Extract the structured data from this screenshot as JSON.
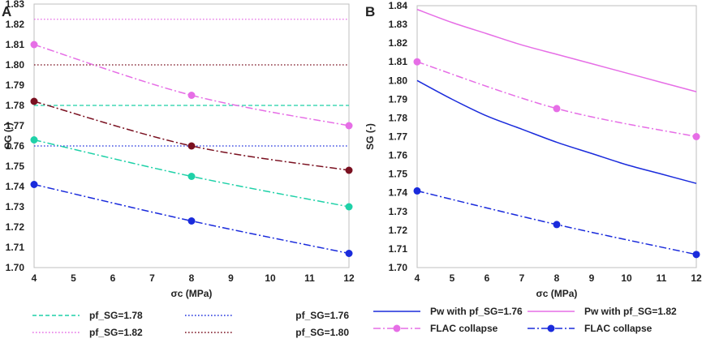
{
  "chart_data": [
    {
      "type": "line",
      "panel_label": "A",
      "xlabel": "σc (MPa)",
      "ylabel": "SG (-)",
      "xlim": [
        4,
        12
      ],
      "ylim": [
        1.7,
        1.83
      ],
      "x_ticks": [
        "4",
        "5",
        "6",
        "7",
        "8",
        "9",
        "10",
        "11",
        "12"
      ],
      "y_ticks": [
        "1.70",
        "1.71",
        "1.72",
        "1.73",
        "1.74",
        "1.75",
        "1.76",
        "1.77",
        "1.78",
        "1.79",
        "1.80",
        "1.81",
        "1.82",
        "1.83"
      ],
      "series": [
        {
          "name": "pf_SG=1.78",
          "kind": "hline",
          "color": "#1fd1a8",
          "dash": "dash",
          "x": [
            4,
            12
          ],
          "values": [
            1.78,
            1.78
          ]
        },
        {
          "name": "pf_SG=1.76",
          "kind": "hline",
          "color": "#2233dd",
          "dash": "dot",
          "x": [
            4,
            12
          ],
          "values": [
            1.76,
            1.76
          ]
        },
        {
          "name": "pf_SG=1.82",
          "kind": "hline",
          "color": "#e66ee6",
          "dash": "dot",
          "x": [
            4,
            12
          ],
          "values": [
            1.8225,
            1.8225
          ]
        },
        {
          "name": "pf_SG=1.80",
          "kind": "hline",
          "color": "#7a1020",
          "dash": "dot",
          "x": [
            4,
            12
          ],
          "values": [
            1.8,
            1.8
          ]
        },
        {
          "name": "FLAC collapse pf_SG=1.82",
          "kind": "marked",
          "color": "#e66ee6",
          "dash": "dashdot",
          "x": [
            4,
            8,
            12
          ],
          "values": [
            1.81,
            1.785,
            1.77
          ]
        },
        {
          "name": "FLAC collapse pf_SG=1.80",
          "kind": "marked",
          "color": "#7a1020",
          "dash": "dashdot",
          "x": [
            4,
            8,
            12
          ],
          "values": [
            1.782,
            1.76,
            1.748
          ]
        },
        {
          "name": "FLAC collapse pf_SG=1.78",
          "kind": "marked",
          "color": "#1fd1a8",
          "dash": "dashdot",
          "x": [
            4,
            8,
            12
          ],
          "values": [
            1.763,
            1.745,
            1.73
          ]
        },
        {
          "name": "FLAC collapse pf_SG=1.76",
          "kind": "marked",
          "color": "#1a2bdc",
          "dash": "dashdot",
          "x": [
            4,
            8,
            12
          ],
          "values": [
            1.741,
            1.723,
            1.707
          ]
        }
      ],
      "legend": [
        {
          "label": "pf_SG=1.78",
          "color": "#1fd1a8",
          "dash": "dash",
          "marker": false
        },
        {
          "label": "pf_SG=1.76",
          "color": "#2233dd",
          "dash": "dot",
          "marker": false
        },
        {
          "label": "pf_SG=1.82",
          "color": "#e66ee6",
          "dash": "dot",
          "marker": false
        },
        {
          "label": "pf_SG=1.80",
          "color": "#7a1020",
          "dash": "dot",
          "marker": false
        }
      ]
    },
    {
      "type": "line",
      "panel_label": "B",
      "xlabel": "σc (MPa)",
      "ylabel": "SG (-)",
      "xlim": [
        4,
        12
      ],
      "ylim": [
        1.7,
        1.84
      ],
      "x_ticks": [
        "4",
        "5",
        "6",
        "7",
        "8",
        "9",
        "10",
        "11",
        "12"
      ],
      "y_ticks": [
        "1.70",
        "1.71",
        "1.72",
        "1.73",
        "1.74",
        "1.75",
        "1.76",
        "1.77",
        "1.78",
        "1.79",
        "1.80",
        "1.81",
        "1.82",
        "1.83",
        "1.84"
      ],
      "series": [
        {
          "name": "Pw with pf_SG=1.82",
          "kind": "curve",
          "color": "#e66ee6",
          "dash": "solid",
          "x": [
            4,
            5,
            6,
            7,
            8,
            9,
            10,
            11,
            12
          ],
          "values": [
            1.838,
            1.831,
            1.825,
            1.819,
            1.814,
            1.809,
            1.804,
            1.799,
            1.794
          ]
        },
        {
          "name": "FLAC collapse",
          "kind": "marked",
          "color": "#e66ee6",
          "dash": "dashdot",
          "x": [
            4,
            8,
            12
          ],
          "values": [
            1.81,
            1.785,
            1.77
          ]
        },
        {
          "name": "Pw with pf_SG=1.76",
          "kind": "curve",
          "color": "#1a2bdc",
          "dash": "solid",
          "x": [
            4,
            5,
            6,
            7,
            8,
            9,
            10,
            11,
            12
          ],
          "values": [
            1.8,
            1.79,
            1.781,
            1.774,
            1.767,
            1.761,
            1.755,
            1.75,
            1.745
          ]
        },
        {
          "name": "FLAC collapse",
          "kind": "marked",
          "color": "#1a2bdc",
          "dash": "dashdot",
          "x": [
            4,
            8,
            12
          ],
          "values": [
            1.741,
            1.723,
            1.707
          ]
        }
      ],
      "legend": [
        {
          "label": "Pw with pf_SG=1.76",
          "color": "#1a2bdc",
          "dash": "solid",
          "marker": false
        },
        {
          "label": "Pw with pf_SG=1.82",
          "color": "#e66ee6",
          "dash": "solid",
          "marker": false
        },
        {
          "label": "FLAC collapse",
          "color": "#e66ee6",
          "dash": "dashdot",
          "marker": true
        },
        {
          "label": "FLAC collapse",
          "color": "#1a2bdc",
          "dash": "dashdot",
          "marker": true
        }
      ]
    }
  ]
}
